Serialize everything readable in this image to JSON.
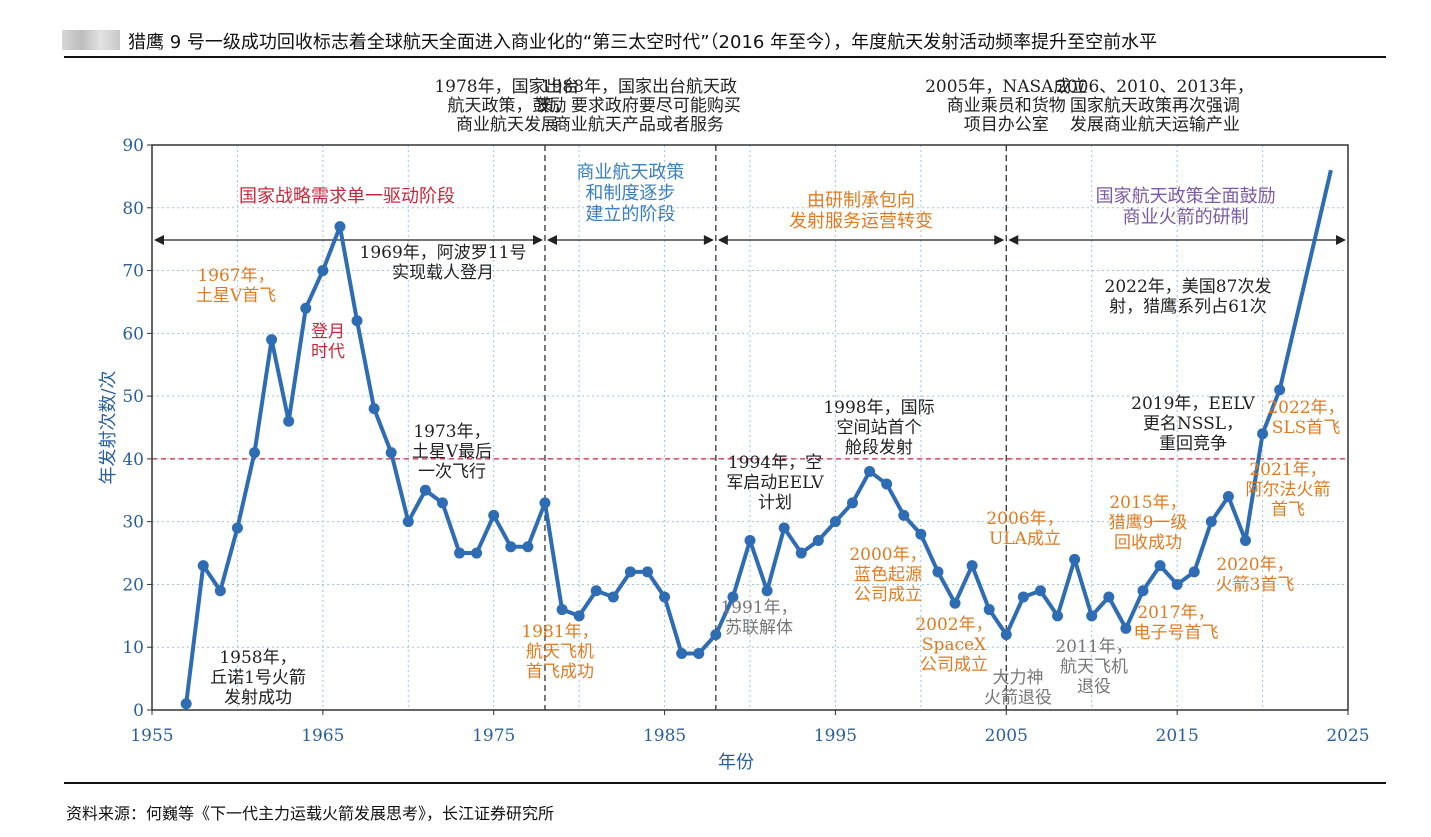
{
  "header": {
    "title": "猎鹰 9 号一级成功回收标志着全球航天全面进入商业化的“第三太空时代”（2016 年至今），年度航天发射活动频率提升至空前水平"
  },
  "source": "资料来源：何巍等《下一代主力运载火箭发展思考》，长江证券研究所",
  "colors": {
    "line": "#2e6db4",
    "marker": "#2e6db4",
    "red": "#c8283a",
    "blue": "#3a7fc1",
    "orange": "#e07b20",
    "purple": "#7a5aa8",
    "gray": "#777777",
    "dark": "#222222",
    "grid": "#9dc3e6"
  },
  "chart_data": {
    "type": "line",
    "xlabel": "年份",
    "ylabel": "年发射次数/次",
    "xlim": [
      1955,
      2025
    ],
    "ylim": [
      0,
      90
    ],
    "xticks": [
      1955,
      1965,
      1975,
      1985,
      1995,
      2005,
      2015,
      2025
    ],
    "yticks": [
      0,
      10,
      20,
      30,
      40,
      50,
      60,
      70,
      80,
      90
    ],
    "grid": true,
    "reference_line": 40,
    "phase_dividers": [
      1978,
      1988,
      2005
    ],
    "series": [
      {
        "x": [
          1957,
          1958,
          1959,
          1960,
          1961,
          1962,
          1963,
          1964,
          1965,
          1966,
          1967,
          1968,
          1969,
          1970,
          1971,
          1972,
          1973,
          1974,
          1975,
          1976,
          1977,
          1978,
          1979,
          1980,
          1981,
          1982,
          1983,
          1984,
          1985,
          1986,
          1987,
          1988,
          1989,
          1990,
          1991,
          1992,
          1993,
          1994,
          1995,
          1996,
          1997,
          1998,
          1999,
          2000,
          2001,
          2002,
          2003,
          2004,
          2005,
          2006,
          2007,
          2008,
          2009,
          2010,
          2011,
          2012,
          2013,
          2014,
          2015,
          2016,
          2017,
          2018,
          2019,
          2020,
          2021,
          2022,
          2023,
          2024
        ],
        "y": [
          1,
          23,
          19,
          29,
          41,
          59,
          46,
          64,
          70,
          77,
          62,
          48,
          41,
          30,
          35,
          33,
          25,
          25,
          31,
          26,
          26,
          33,
          16,
          15,
          19,
          18,
          22,
          22,
          18,
          9,
          9,
          12,
          18,
          27,
          19,
          29,
          25,
          27,
          30,
          33,
          38,
          36,
          31,
          28,
          22,
          17,
          23,
          16,
          12,
          18,
          19,
          15,
          24,
          15,
          18,
          13,
          19,
          23,
          20,
          22,
          30,
          34,
          27,
          44,
          51,
          null,
          null,
          86
        ]
      }
    ],
    "phases": [
      {
        "label": "国家战略需求单一驱动阶段",
        "color": "red"
      },
      {
        "label": "商业航天政策\n和制度逐步\n建立的阶段",
        "color": "blue"
      },
      {
        "label": "由研制承包向\n发射服务运营转变",
        "color": "orange"
      },
      {
        "label": "国家航天政策全面鼓励\n商业火箭的研制",
        "color": "purple"
      }
    ],
    "policy_notes": [
      "1978年，国家出台\n航天政策，鼓励\n商业航天发展",
      "1988年，国家出台航天政\n策，要求政府要尽可能购买\n商业航天产品或者服务",
      "2005年，NASA成立\n商业乘员和货物\n项目办公室",
      "2006、2010、2013年，\n国家航天政策再次强调\n发展商业航天运输产业"
    ],
    "annotations": [
      {
        "text": "1958年，\n丘诺1号火箭\n发射成功",
        "color": "dark"
      },
      {
        "text": "1967年，\n土星V首飞",
        "color": "orange"
      },
      {
        "text": "登月\n时代",
        "color": "red"
      },
      {
        "text": "1969年，阿波罗11号\n实现载人登月",
        "color": "dark"
      },
      {
        "text": "1973年，\n土星V最后\n一次飞行",
        "color": "dark"
      },
      {
        "text": "1981年，\n航天飞机\n首飞成功",
        "color": "orange"
      },
      {
        "text": "1991年，\n苏联解体",
        "color": "gray"
      },
      {
        "text": "1994年，空\n军启动EELV\n计划",
        "color": "dark"
      },
      {
        "text": "1998年，国际\n空间站首个\n舱段发射",
        "color": "dark"
      },
      {
        "text": "2000年，\n蓝色起源\n公司成立",
        "color": "orange"
      },
      {
        "text": "2002年，\nSpaceX\n公司成立",
        "color": "orange"
      },
      {
        "text": "大力神\n火箭退役",
        "color": "gray"
      },
      {
        "text": "2006年，\nULA成立",
        "color": "orange"
      },
      {
        "text": "2011年，\n航天飞机\n退役",
        "color": "gray"
      },
      {
        "text": "2015年，\n猎鹰9一级\n回收成功",
        "color": "orange"
      },
      {
        "text": "2017年，\n电子号首飞",
        "color": "orange"
      },
      {
        "text": "2019年，EELV\n更名NSSL，\n重回竞争",
        "color": "dark"
      },
      {
        "text": "2020年，\n火箭3首飞",
        "color": "orange"
      },
      {
        "text": "2021年，\n阿尔法火箭\n首飞",
        "color": "orange"
      },
      {
        "text": "2022年，\nSLS首飞",
        "color": "orange"
      },
      {
        "text": "2022年，美国87次发\n射，猎鹰系列占61次",
        "color": "dark"
      }
    ]
  }
}
